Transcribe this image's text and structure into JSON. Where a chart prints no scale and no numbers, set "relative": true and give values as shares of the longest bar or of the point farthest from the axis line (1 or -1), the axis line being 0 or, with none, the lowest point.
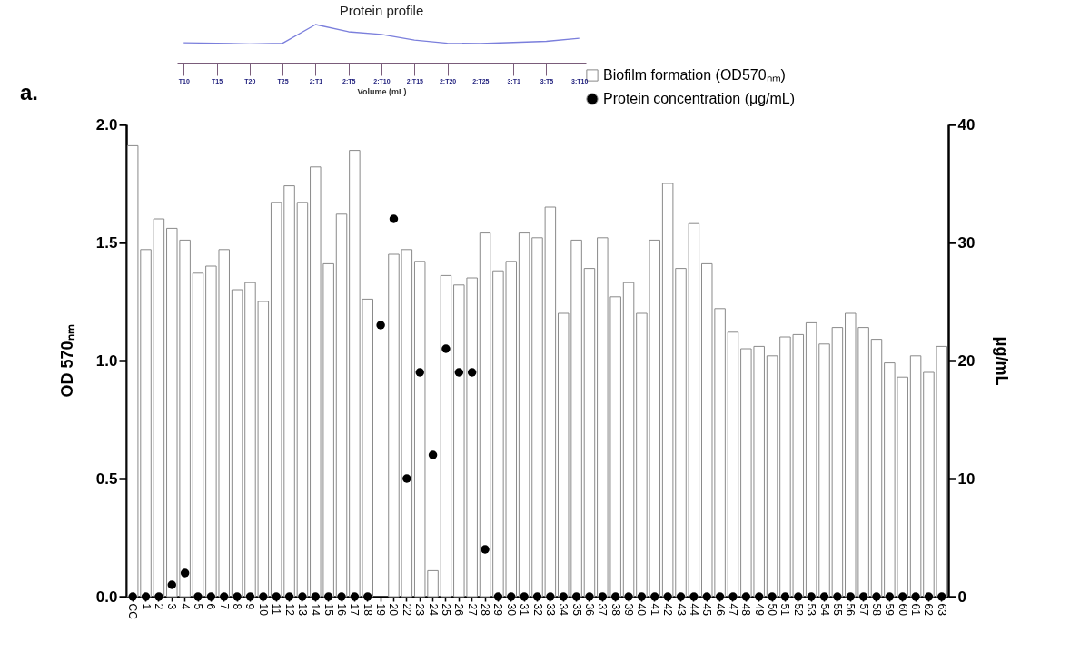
{
  "chart_data": [
    {
      "type": "line",
      "title": "Protein profile",
      "xlabel": "Volume (mL)",
      "relative": true,
      "categories": [
        "T10",
        "T15",
        "T20",
        "T25",
        "2:T1",
        "2:T5",
        "2:T10",
        "2:T15",
        "2:T20",
        "2:T25",
        "3:T1",
        "3:T5",
        "3:T10"
      ],
      "series": [
        {
          "color": "#7b7fdc",
          "values": [
            0.52,
            0.51,
            0.49,
            0.51,
            1,
            0.81,
            0.74,
            0.59,
            0.51,
            0.5,
            0.53,
            0.56,
            0.64
          ]
        }
      ]
    },
    {
      "type": "bar",
      "ylabel": "OD 570ₙₘ",
      "y2label": "μg/mL",
      "annotations": [
        "a."
      ],
      "legend": "top right",
      "marker": "circle",
      "categories": [
        "CC",
        "1",
        "2",
        "3",
        "4",
        "5",
        "6",
        "7",
        "8",
        "9",
        "10",
        "11",
        "12",
        "13",
        "14",
        "15",
        "16",
        "17",
        "18",
        "19",
        "20",
        "22",
        "23",
        "24",
        "25",
        "26",
        "27",
        "28",
        "29",
        "30",
        "31",
        "32",
        "33",
        "34",
        "35",
        "36",
        "37",
        "38",
        "39",
        "40",
        "41",
        "42",
        "43",
        "44",
        "45",
        "46",
        "47",
        "48",
        "49",
        "50",
        "51",
        "52",
        "53",
        "54",
        "55",
        "56",
        "57",
        "58",
        "59",
        "60",
        "61",
        "62",
        "63"
      ],
      "ylim": [
        0,
        2
      ],
      "yticks": [
        {
          "value": 0,
          "label": "0.0"
        },
        {
          "value": 0.5,
          "label": "0.5"
        },
        {
          "value": 1,
          "label": "1.0"
        },
        {
          "value": 1.5,
          "label": "1.5"
        },
        {
          "value": 2,
          "label": "2.0"
        }
      ],
      "y2lim": [
        0,
        40
      ],
      "y2ticks": [
        0,
        10,
        20,
        30,
        40
      ],
      "series": [
        {
          "name": "Biofilm formation (OD570ₙₘ)",
          "type": "bar",
          "color": "#ffffff",
          "values": [
            1.91,
            1.47,
            1.6,
            1.56,
            1.51,
            1.37,
            1.4,
            1.47,
            1.3,
            1.33,
            1.25,
            1.67,
            1.74,
            1.67,
            1.82,
            1.41,
            1.62,
            1.89,
            1.26,
            null,
            1.45,
            1.47,
            1.42,
            0.11,
            1.36,
            1.32,
            1.35,
            1.54,
            1.38,
            1.42,
            1.54,
            1.52,
            1.65,
            1.2,
            1.51,
            1.39,
            1.52,
            1.27,
            1.33,
            1.2,
            1.51,
            1.75,
            1.39,
            1.58,
            1.41,
            1.22,
            1.12,
            1.05,
            1.06,
            1.02,
            1.1,
            1.11,
            1.16,
            1.07,
            1.14,
            1.2,
            1.14,
            1.09,
            0.99,
            0.93,
            1.02,
            0.95,
            1.06
          ]
        },
        {
          "name": "Protein concentration (μg/mL)",
          "type": "scatter",
          "axis": "y2",
          "color": "#000000",
          "values": [
            0,
            0,
            0,
            1,
            2,
            0,
            0,
            0,
            0,
            0,
            0,
            0,
            0,
            0,
            0,
            0,
            0,
            0,
            0,
            23,
            32,
            10,
            19,
            12,
            21,
            19,
            19,
            4,
            0,
            0,
            0,
            0,
            0,
            0,
            0,
            0,
            0,
            0,
            0,
            0,
            0,
            0,
            0,
            0,
            0,
            0,
            0,
            0,
            0,
            0,
            0,
            0,
            0,
            0,
            0,
            0,
            0,
            0,
            0,
            0,
            0,
            0,
            0
          ]
        }
      ]
    }
  ]
}
